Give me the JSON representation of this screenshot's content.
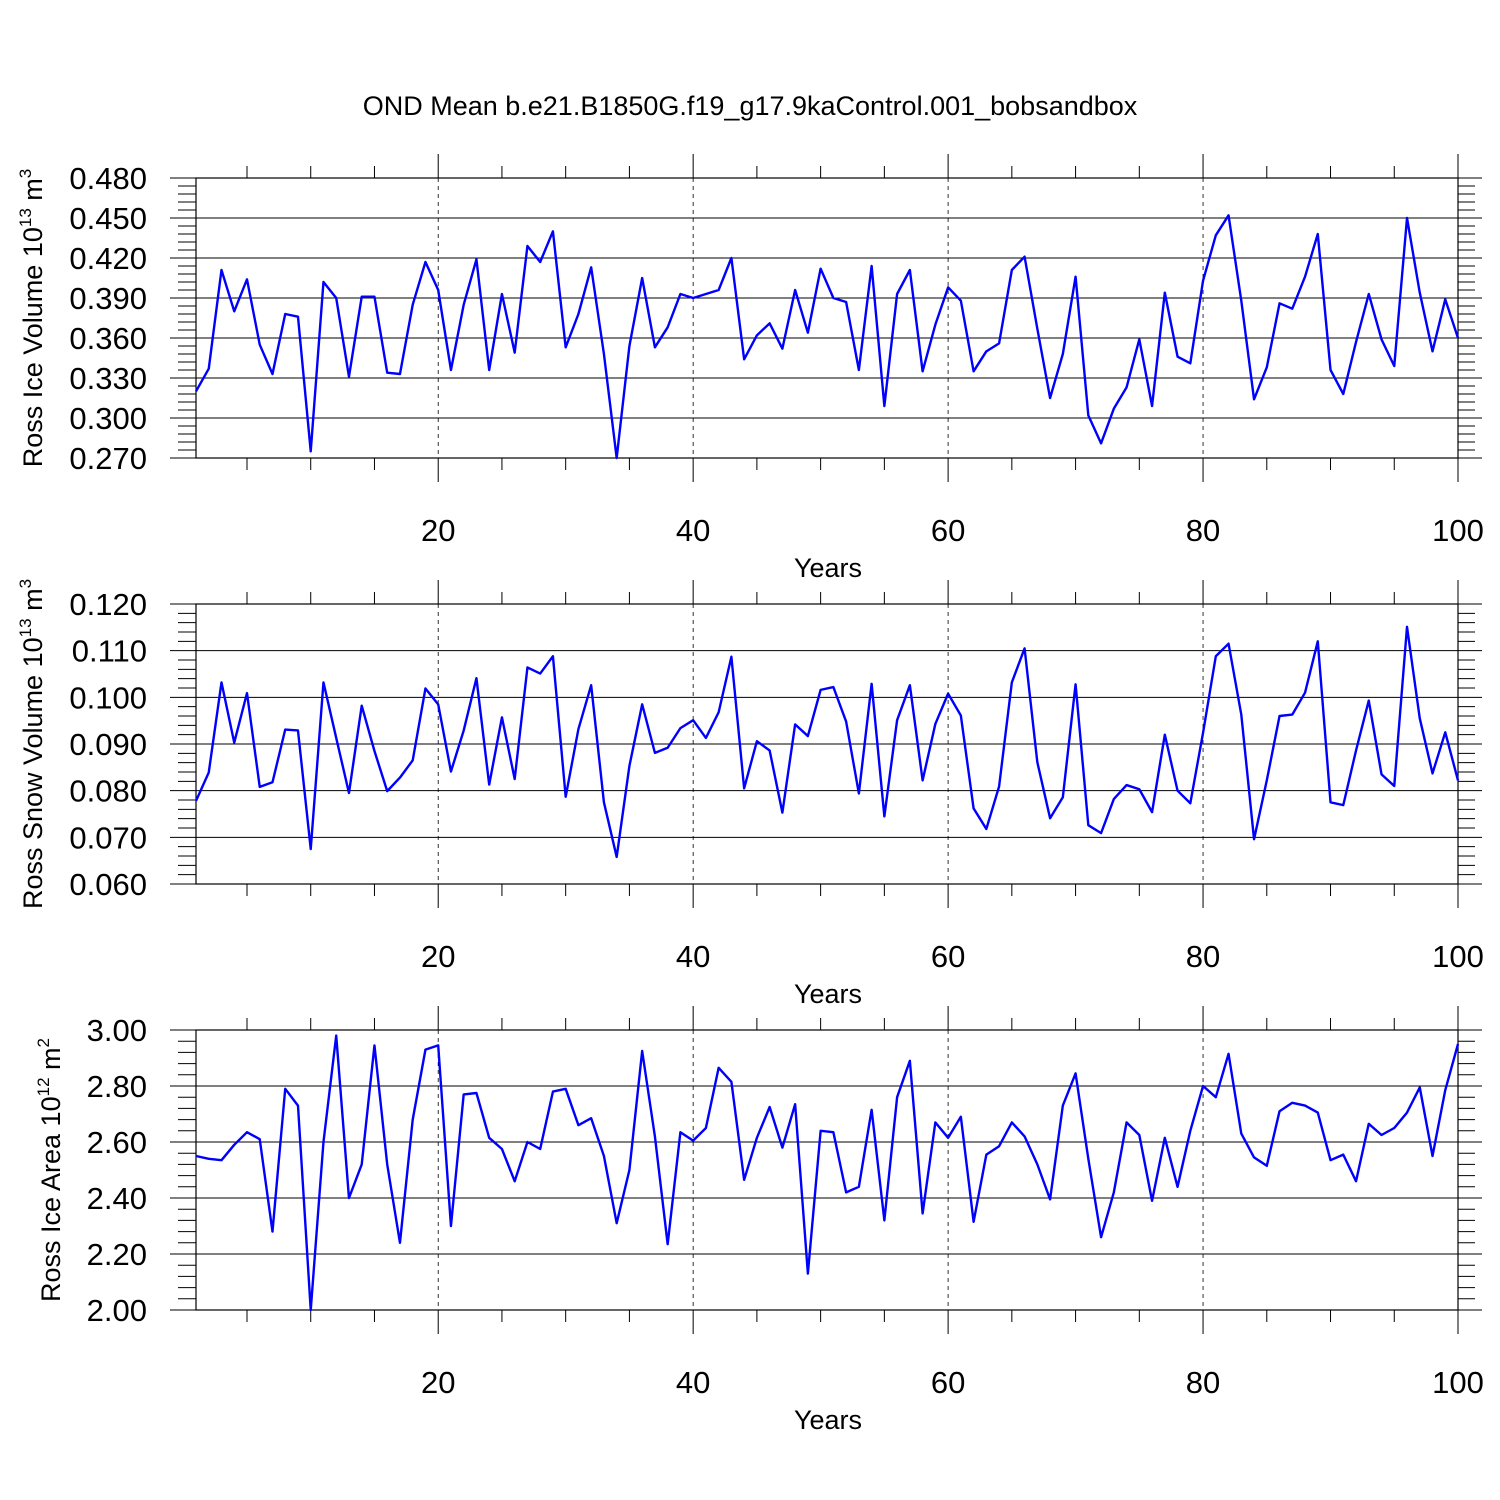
{
  "figure_title": "OND Mean b.e21.B1850G.f19_g17.9kaControl.001_bobsandbox",
  "colors": {
    "line": "#0000ff",
    "axes": "#000000",
    "grid": "#000000"
  },
  "chart_data": [
    {
      "type": "line",
      "ylabel": "Ross Ice Volume",
      "ylabel_unit_base": "10",
      "ylabel_unit_exp": "13",
      "ylabel_unit_name": "m",
      "ylabel_unit_name_exp": "3",
      "xlabel": "Years",
      "xlim": [
        1,
        100
      ],
      "ylim": [
        0.27,
        0.48
      ],
      "x_ticks": [
        20,
        40,
        60,
        80,
        100
      ],
      "y_ticks": [
        "0.270",
        "0.300",
        "0.330",
        "0.360",
        "0.390",
        "0.420",
        "0.450",
        "0.480"
      ],
      "y_tick_values": [
        0.27,
        0.3,
        0.33,
        0.36,
        0.39,
        0.42,
        0.45,
        0.48
      ],
      "grid_x": [
        20,
        40,
        60,
        80
      ],
      "x_start": 1,
      "values": [
        0.32,
        0.337,
        0.411,
        0.38,
        0.404,
        0.355,
        0.333,
        0.378,
        0.376,
        0.275,
        0.402,
        0.39,
        0.331,
        0.391,
        0.391,
        0.334,
        0.333,
        0.385,
        0.417,
        0.396,
        0.336,
        0.385,
        0.419,
        0.336,
        0.393,
        0.349,
        0.429,
        0.417,
        0.44,
        0.353,
        0.378,
        0.413,
        0.348,
        0.27,
        0.354,
        0.405,
        0.353,
        0.368,
        0.393,
        0.39,
        0.393,
        0.396,
        0.42,
        0.344,
        0.362,
        0.371,
        0.352,
        0.396,
        0.364,
        0.412,
        0.39,
        0.387,
        0.336,
        0.414,
        0.309,
        0.393,
        0.411,
        0.335,
        0.37,
        0.398,
        0.388,
        0.335,
        0.35,
        0.356,
        0.411,
        0.421,
        0.367,
        0.315,
        0.348,
        0.406,
        0.302,
        0.281,
        0.307,
        0.323,
        0.359,
        0.309,
        0.394,
        0.346,
        0.341,
        0.403,
        0.437,
        0.452,
        0.388,
        0.314,
        0.338,
        0.386,
        0.382,
        0.406,
        0.438,
        0.336,
        0.318,
        0.357,
        0.393,
        0.359,
        0.339,
        0.45,
        0.394,
        0.35,
        0.389,
        0.36
      ]
    },
    {
      "type": "line",
      "ylabel": "Ross Snow Volume",
      "ylabel_unit_base": "10",
      "ylabel_unit_exp": "13",
      "ylabel_unit_name": "m",
      "ylabel_unit_name_exp": "3",
      "xlabel": "Years",
      "xlim": [
        1,
        100
      ],
      "ylim": [
        0.06,
        0.12
      ],
      "x_ticks": [
        20,
        40,
        60,
        80,
        100
      ],
      "y_ticks": [
        "0.060",
        "0.070",
        "0.080",
        "0.090",
        "0.100",
        "0.110",
        "0.120"
      ],
      "y_tick_values": [
        0.06,
        0.07,
        0.08,
        0.09,
        0.1,
        0.11,
        0.12
      ],
      "grid_x": [
        20,
        40,
        60,
        80
      ],
      "x_start": 1,
      "values": [
        0.0778,
        0.0839,
        0.1032,
        0.0903,
        0.1009,
        0.0808,
        0.0818,
        0.0931,
        0.0929,
        0.0675,
        0.1032,
        0.0913,
        0.0795,
        0.0982,
        0.0885,
        0.0799,
        0.0828,
        0.0865,
        0.1019,
        0.0985,
        0.0841,
        0.0929,
        0.1041,
        0.0813,
        0.0957,
        0.0825,
        0.1064,
        0.1051,
        0.1088,
        0.0787,
        0.0932,
        0.1026,
        0.0775,
        0.0658,
        0.0853,
        0.0985,
        0.0881,
        0.0892,
        0.0934,
        0.0951,
        0.0913,
        0.0968,
        0.1087,
        0.0805,
        0.0906,
        0.0886,
        0.0753,
        0.0942,
        0.0917,
        0.1016,
        0.1022,
        0.0948,
        0.0794,
        0.1029,
        0.0745,
        0.0951,
        0.1026,
        0.0822,
        0.0943,
        0.1008,
        0.0961,
        0.0762,
        0.0718,
        0.0809,
        0.1032,
        0.1105,
        0.0861,
        0.0741,
        0.0786,
        0.1028,
        0.0726,
        0.0709,
        0.0782,
        0.0812,
        0.0803,
        0.0754,
        0.092,
        0.08,
        0.0773,
        0.0924,
        0.1088,
        0.1115,
        0.0963,
        0.0696,
        0.0822,
        0.096,
        0.0963,
        0.101,
        0.112,
        0.0775,
        0.0769,
        0.0886,
        0.0993,
        0.0835,
        0.081,
        0.1151,
        0.0955,
        0.0837,
        0.0925,
        0.0822
      ]
    },
    {
      "type": "line",
      "ylabel": "Ross Ice Area",
      "ylabel_unit_base": "10",
      "ylabel_unit_exp": "12",
      "ylabel_unit_name": "m",
      "ylabel_unit_name_exp": "2",
      "xlabel": "Years",
      "xlim": [
        1,
        100
      ],
      "ylim": [
        2.0,
        3.0
      ],
      "x_ticks": [
        20,
        40,
        60,
        80,
        100
      ],
      "y_ticks": [
        "2.00",
        "2.20",
        "2.40",
        "2.60",
        "2.80",
        "3.00"
      ],
      "y_tick_values": [
        2.0,
        2.2,
        2.4,
        2.6,
        2.8,
        3.0
      ],
      "grid_x": [
        20,
        40,
        60,
        80
      ],
      "x_start": 1,
      "values": [
        2.55,
        2.54,
        2.535,
        2.59,
        2.635,
        2.61,
        2.28,
        2.79,
        2.73,
        2.0,
        2.6,
        2.98,
        2.4,
        2.52,
        2.945,
        2.52,
        2.24,
        2.68,
        2.93,
        2.945,
        2.3,
        2.77,
        2.775,
        2.615,
        2.575,
        2.46,
        2.6,
        2.575,
        2.78,
        2.79,
        2.66,
        2.685,
        2.55,
        2.31,
        2.5,
        2.925,
        2.62,
        2.235,
        2.635,
        2.605,
        2.65,
        2.865,
        2.815,
        2.465,
        2.615,
        2.725,
        2.58,
        2.735,
        2.13,
        2.64,
        2.635,
        2.42,
        2.44,
        2.715,
        2.32,
        2.76,
        2.89,
        2.345,
        2.67,
        2.615,
        2.69,
        2.315,
        2.555,
        2.585,
        2.67,
        2.62,
        2.52,
        2.395,
        2.73,
        2.845,
        2.54,
        2.26,
        2.42,
        2.67,
        2.625,
        2.39,
        2.615,
        2.44,
        2.64,
        2.8,
        2.76,
        2.915,
        2.63,
        2.545,
        2.515,
        2.71,
        2.74,
        2.73,
        2.705,
        2.535,
        2.555,
        2.46,
        2.665,
        2.625,
        2.65,
        2.705,
        2.795,
        2.55,
        2.785,
        2.95
      ]
    }
  ]
}
